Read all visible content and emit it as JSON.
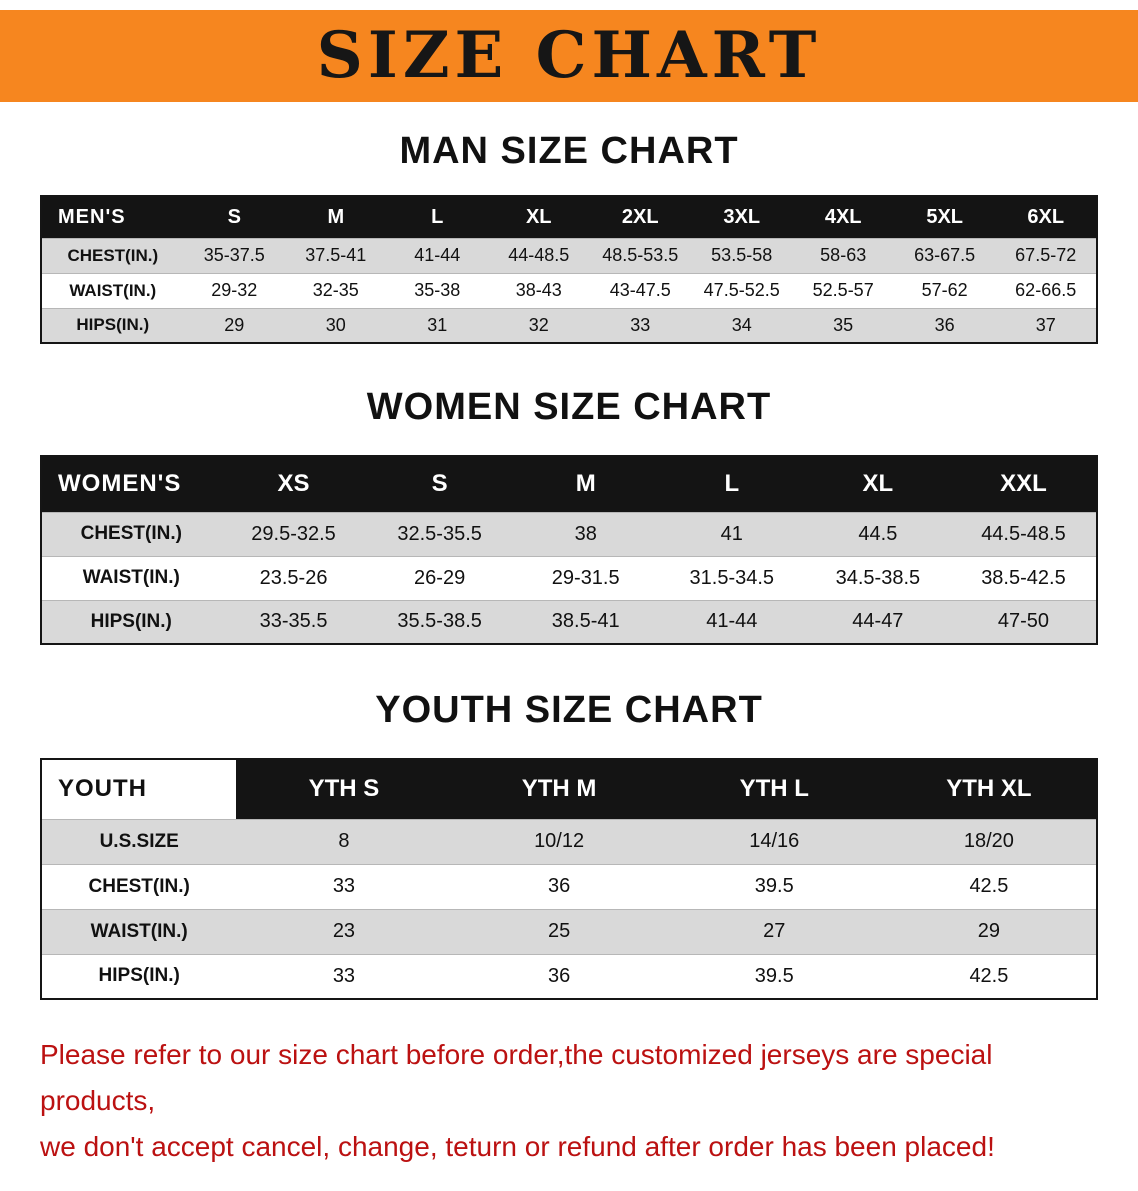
{
  "banner": {
    "title": "SIZE CHART"
  },
  "colors": {
    "banner_bg": "#f6861f",
    "table_header_bg": "#141414",
    "table_header_text": "#ffffff",
    "row_stripe": "#d9d9d9",
    "notice_text": "#bb1111",
    "heading_text": "#111111"
  },
  "sections": [
    {
      "id": "men",
      "title": "MAN SIZE CHART",
      "table": {
        "label_inverse": false,
        "header": [
          "MEN'S",
          "S",
          "M",
          "L",
          "XL",
          "2XL",
          "3XL",
          "4XL",
          "5XL",
          "6XL"
        ],
        "rows": [
          [
            "CHEST(IN.)",
            "35-37.5",
            "37.5-41",
            "41-44",
            "44-48.5",
            "48.5-53.5",
            "53.5-58",
            "58-63",
            "63-67.5",
            "67.5-72"
          ],
          [
            "WAIST(IN.)",
            "29-32",
            "32-35",
            "35-38",
            "38-43",
            "43-47.5",
            "47.5-52.5",
            "52.5-57",
            "57-62",
            "62-66.5"
          ],
          [
            "HIPS(IN.)",
            "29",
            "30",
            "31",
            "32",
            "33",
            "34",
            "35",
            "36",
            "37"
          ]
        ]
      }
    },
    {
      "id": "women",
      "title": "WOMEN SIZE CHART",
      "table": {
        "label_inverse": false,
        "header": [
          "WOMEN'S",
          "XS",
          "S",
          "M",
          "L",
          "XL",
          "XXL"
        ],
        "rows": [
          [
            "CHEST(IN.)",
            "29.5-32.5",
            "32.5-35.5",
            "38",
            "41",
            "44.5",
            "44.5-48.5"
          ],
          [
            "WAIST(IN.)",
            "23.5-26",
            "26-29",
            "29-31.5",
            "31.5-34.5",
            "34.5-38.5",
            "38.5-42.5"
          ],
          [
            "HIPS(IN.)",
            "33-35.5",
            "35.5-38.5",
            "38.5-41",
            "41-44",
            "44-47",
            "47-50"
          ]
        ]
      }
    },
    {
      "id": "youth",
      "title": "YOUTH SIZE CHART",
      "table": {
        "label_inverse": true,
        "header": [
          "YOUTH",
          "YTH S",
          "YTH M",
          "YTH L",
          "YTH XL"
        ],
        "rows": [
          [
            "U.S.SIZE",
            "8",
            "10/12",
            "14/16",
            "18/20"
          ],
          [
            "CHEST(IN.)",
            "33",
            "36",
            "39.5",
            "42.5"
          ],
          [
            "WAIST(IN.)",
            "23",
            "25",
            "27",
            "29"
          ],
          [
            "HIPS(IN.)",
            "33",
            "36",
            "39.5",
            "42.5"
          ]
        ]
      }
    }
  ],
  "footer": {
    "line1": "Please refer to our size chart before order,the customized jerseys are special products,",
    "line2": "we don't accept cancel, change, teturn or refund after order has been placed!"
  }
}
